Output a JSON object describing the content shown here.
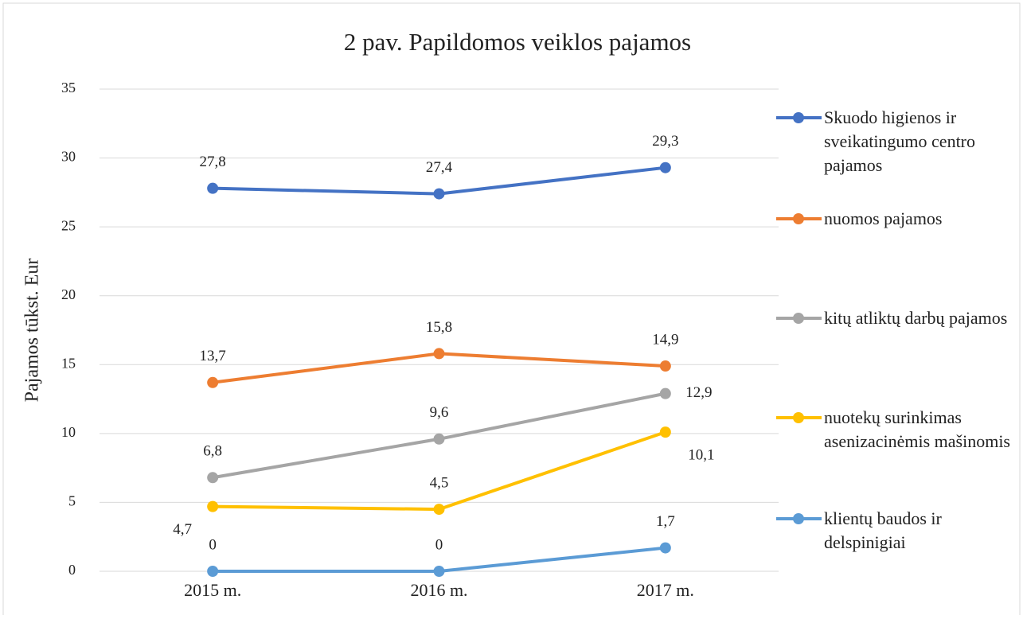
{
  "chart_data": {
    "type": "line",
    "title": "2 pav. Papildomos veiklos pajamos",
    "y_label": "Pajamos tūkst. Eur",
    "categories": [
      "2015 m.",
      "2016 m.",
      "2017 m."
    ],
    "ylim": [
      0,
      35
    ],
    "yticks": [
      0,
      5,
      10,
      15,
      20,
      25,
      30,
      35
    ],
    "grid": true,
    "legend": "right",
    "series": [
      {
        "name": "Skuodo higienos ir sveikatingumo centro pajamos",
        "color": "#4472c4",
        "values": [
          27.8,
          27.4,
          29.3
        ],
        "value_labels": [
          "27,8",
          "27,4",
          "29,3"
        ]
      },
      {
        "name": "nuomos pajamos",
        "color": "#ed7d31",
        "values": [
          13.7,
          15.8,
          14.9
        ],
        "value_labels": [
          "13,7",
          "15,8",
          "14,9"
        ]
      },
      {
        "name": "kitų atliktų darbų pajamos",
        "color": "#a5a5a5",
        "values": [
          6.8,
          9.6,
          12.9
        ],
        "value_labels": [
          "6,8",
          "9,6",
          "12,9"
        ]
      },
      {
        "name": "nuotekų surinkimas asenizacinėmis mašinomis",
        "color": "#ffc000",
        "values": [
          4.7,
          4.5,
          10.1
        ],
        "value_labels": [
          "4,7",
          "4,5",
          "10,1"
        ]
      },
      {
        "name": "klientų baudos ir delspinigiai",
        "color": "#5b9bd5",
        "values": [
          0,
          0,
          1.7
        ],
        "value_labels": [
          "0",
          "0",
          "1,7"
        ]
      }
    ]
  }
}
